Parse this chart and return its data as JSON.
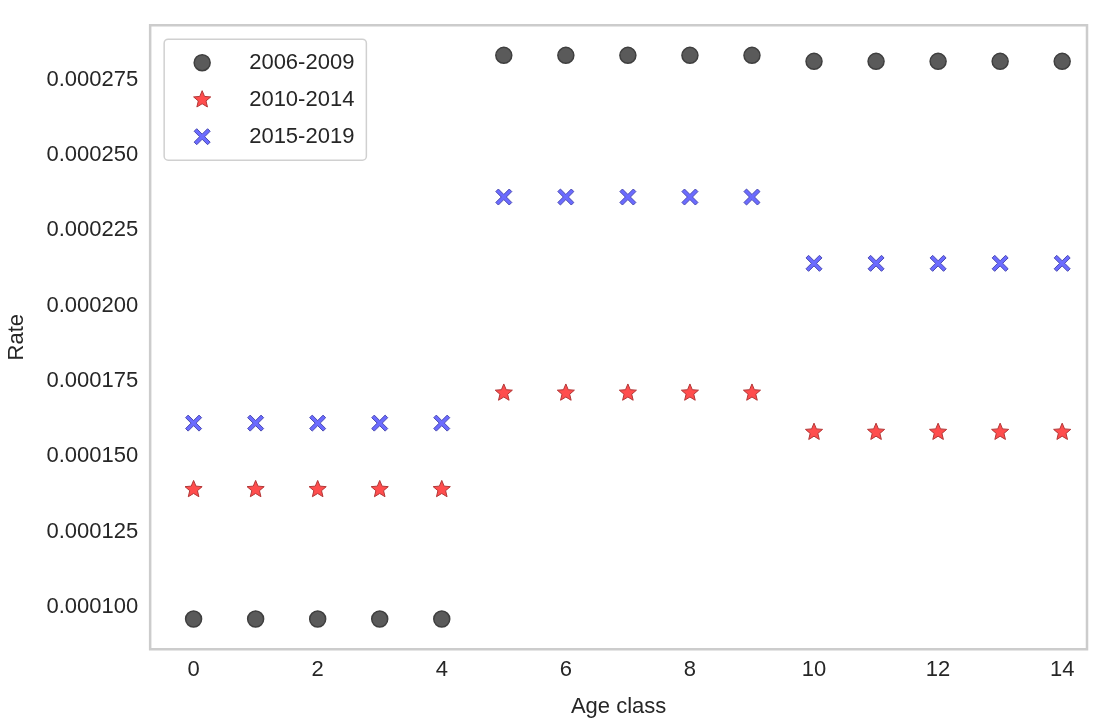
{
  "chart_data": {
    "type": "scatter",
    "xlabel": "Age class",
    "ylabel": "Rate",
    "x": [
      0,
      1,
      2,
      3,
      4,
      5,
      6,
      7,
      8,
      9,
      10,
      11,
      12,
      13,
      14
    ],
    "xlim": [
      -0.7,
      14.4
    ],
    "xticks": [
      0,
      2,
      4,
      6,
      8,
      10,
      12,
      14
    ],
    "ylim": [
      8.6e-05,
      0.000293
    ],
    "yticks": [
      {
        "value": 0.0001,
        "label": "0.000100"
      },
      {
        "value": 0.000125,
        "label": "0.000125"
      },
      {
        "value": 0.00015,
        "label": "0.000150"
      },
      {
        "value": 0.000175,
        "label": "0.000175"
      },
      {
        "value": 0.0002,
        "label": "0.000200"
      },
      {
        "value": 0.000225,
        "label": "0.000225"
      },
      {
        "value": 0.00025,
        "label": "0.000250"
      },
      {
        "value": 0.000275,
        "label": "0.000275"
      }
    ],
    "legend": "top left",
    "series": [
      {
        "name": "2006-2009",
        "color": "#5a5a5a",
        "marker": "circle",
        "values": [
          9.6e-05,
          9.6e-05,
          9.6e-05,
          9.6e-05,
          9.6e-05,
          0.000283,
          0.000283,
          0.000283,
          0.000283,
          0.000283,
          0.000281,
          0.000281,
          0.000281,
          0.000281,
          0.000281
        ]
      },
      {
        "name": "2010-2014",
        "color": "#ff4d4d",
        "marker": "star",
        "values": [
          0.000139,
          0.000139,
          0.000139,
          0.000139,
          0.000139,
          0.000171,
          0.000171,
          0.000171,
          0.000171,
          0.000171,
          0.000158,
          0.000158,
          0.000158,
          0.000158,
          0.000158
        ]
      },
      {
        "name": "2015-2019",
        "color": "#6b6bff",
        "marker": "cross",
        "values": [
          0.000161,
          0.000161,
          0.000161,
          0.000161,
          0.000161,
          0.000236,
          0.000236,
          0.000236,
          0.000236,
          0.000236,
          0.000214,
          0.000214,
          0.000214,
          0.000214,
          0.000214
        ]
      }
    ]
  }
}
